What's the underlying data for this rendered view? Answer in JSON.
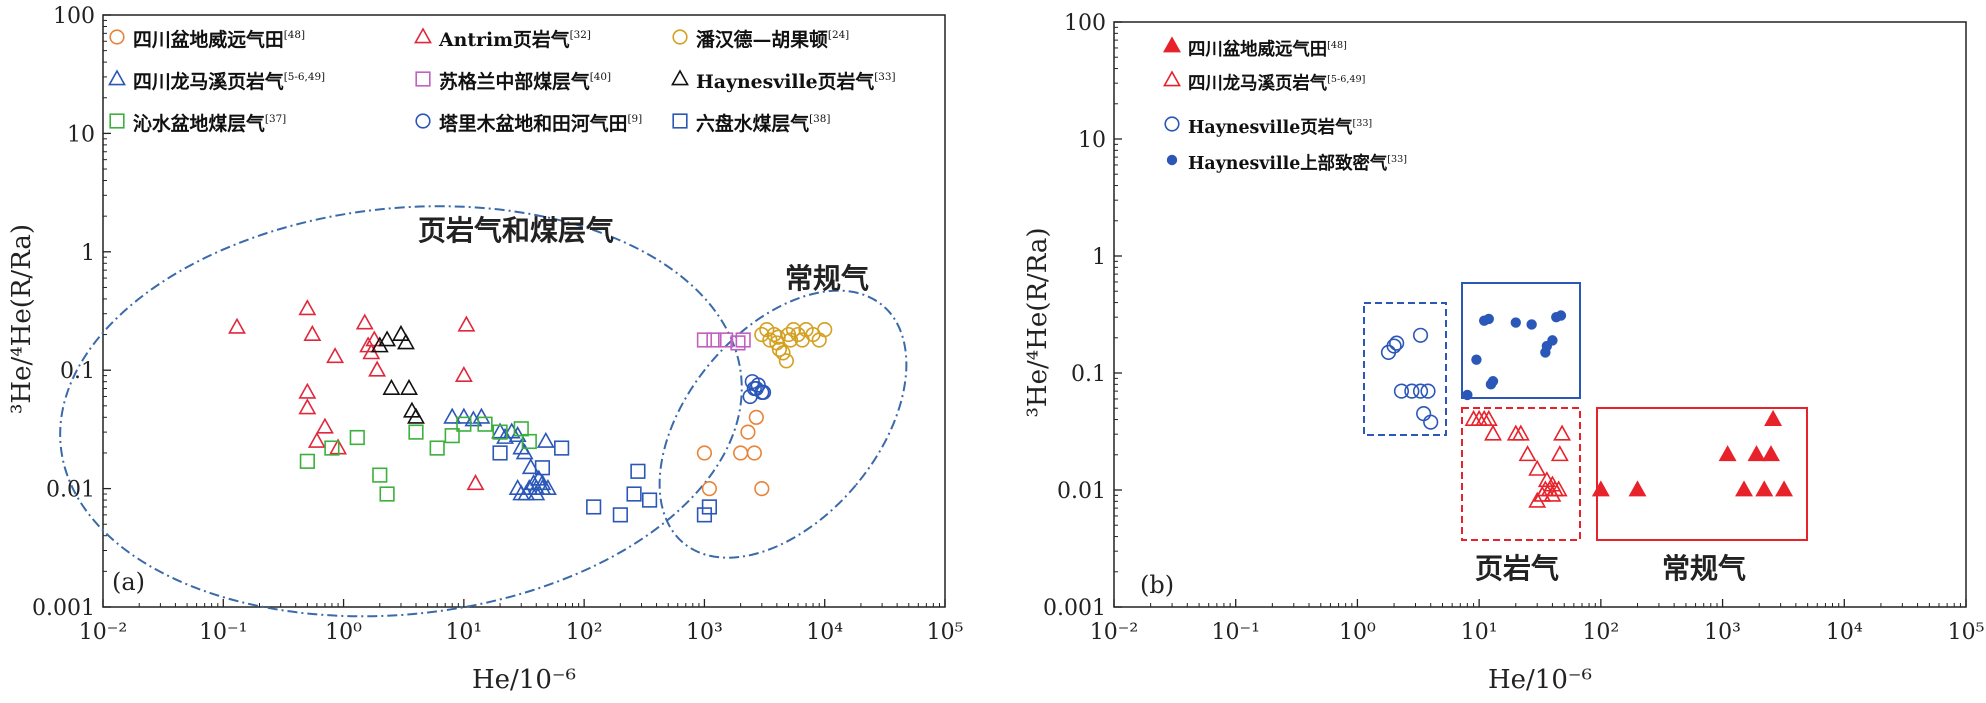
{
  "chart_data": [
    {
      "type": "scatter",
      "panel_label": "(a)",
      "xlabel": "He/10⁻⁶",
      "ylabel": "³He/⁴He(R/Ra)",
      "xscale": "log",
      "yscale": "log",
      "xlim": [
        0.01,
        100000
      ],
      "ylim": [
        0.001,
        100
      ],
      "x_ticks": [
        "10⁻²",
        "10⁻¹",
        "10⁰",
        "10¹",
        "10²",
        "10³",
        "10⁴",
        "10⁵"
      ],
      "y_ticks": [
        "100",
        "10",
        "1",
        "0.1",
        "0.01",
        "0.001"
      ],
      "legend_position": "top",
      "series": [
        {
          "name": "四川盆地威远气田",
          "ref": "[48]",
          "marker": "circle-open",
          "color": "#e8843a",
          "x": [
            1000,
            1100,
            2000,
            2300,
            2600,
            3000,
            2700
          ],
          "y": [
            0.02,
            0.01,
            0.02,
            0.03,
            0.02,
            0.01,
            0.04
          ]
        },
        {
          "name": "Antrim页岩气",
          "ref": "[32]",
          "marker": "triangle-open",
          "color": "#e0283c",
          "x": [
            0.13,
            0.5,
            0.55,
            0.5,
            0.5,
            0.7,
            0.85,
            0.6,
            0.9,
            1.5,
            1.7,
            1.9,
            1.6,
            1.8,
            10.5,
            10,
            12.5
          ],
          "y": [
            0.23,
            0.33,
            0.2,
            0.065,
            0.048,
            0.033,
            0.13,
            0.025,
            0.022,
            0.25,
            0.14,
            0.1,
            0.16,
            0.18,
            0.24,
            0.09,
            0.011
          ]
        },
        {
          "name": "潘汉德—胡果顿",
          "ref": "[24]",
          "marker": "circle-open",
          "color": "#d4a020",
          "x": [
            3000,
            3500,
            4000,
            4500,
            5000,
            5500,
            6000,
            6500,
            7000,
            8000,
            9000,
            10000,
            3800,
            4200,
            4800,
            5200,
            3300,
            4100
          ],
          "y": [
            0.2,
            0.18,
            0.17,
            0.14,
            0.2,
            0.22,
            0.2,
            0.18,
            0.22,
            0.2,
            0.18,
            0.22,
            0.2,
            0.15,
            0.12,
            0.18,
            0.22,
            0.19
          ]
        },
        {
          "name": "四川龙马溪页岩气",
          "ref": "[5-6,49]",
          "marker": "triangle-open",
          "color": "#2b57b8",
          "x": [
            8,
            10,
            12,
            14,
            20,
            25,
            28,
            30,
            35,
            38,
            40,
            42,
            45,
            50,
            32,
            36,
            28,
            33,
            40,
            45,
            48,
            22,
            30
          ],
          "y": [
            0.04,
            0.04,
            0.038,
            0.04,
            0.03,
            0.03,
            0.028,
            0.009,
            0.01,
            0.011,
            0.01,
            0.012,
            0.01,
            0.01,
            0.02,
            0.015,
            0.01,
            0.009,
            0.009,
            0.011,
            0.025,
            0.027,
            0.022
          ]
        },
        {
          "name": "苏格兰中部煤层气",
          "ref": "[40]",
          "marker": "square-open",
          "color": "#c060c0",
          "x": [
            1000,
            1200,
            1500,
            1900,
            2100
          ],
          "y": [
            0.18,
            0.18,
            0.18,
            0.17,
            0.18
          ]
        },
        {
          "name": "Haynesville页岩气",
          "ref": "[33]",
          "marker": "triangle-open",
          "color": "#111111",
          "x": [
            2,
            2.3,
            3,
            3.3,
            2.5,
            3.5,
            3.7,
            4
          ],
          "y": [
            0.16,
            0.18,
            0.2,
            0.17,
            0.07,
            0.07,
            0.045,
            0.04
          ]
        },
        {
          "name": "沁水盆地煤层气",
          "ref": "[37]",
          "marker": "square-open",
          "color": "#3cb03c",
          "x": [
            0.5,
            0.8,
            1.3,
            2,
            2.3,
            4,
            6,
            8,
            10,
            15,
            20,
            30,
            35
          ],
          "y": [
            0.017,
            0.022,
            0.027,
            0.013,
            0.009,
            0.03,
            0.022,
            0.028,
            0.035,
            0.035,
            0.03,
            0.032,
            0.025
          ]
        },
        {
          "name": "塔里木盆地和田河气田",
          "ref": "[9]",
          "marker": "circle-open",
          "color": "#2b57b8",
          "x": [
            2400,
            2700,
            3000,
            2500,
            2800,
            3100,
            2600
          ],
          "y": [
            0.06,
            0.07,
            0.065,
            0.08,
            0.075,
            0.065,
            0.07
          ]
        },
        {
          "name": "六盘水煤层气",
          "ref": "[38]",
          "marker": "square-open",
          "color": "#2b57b8",
          "x": [
            20,
            45,
            65,
            120,
            200,
            280,
            350,
            260,
            1000,
            1100
          ],
          "y": [
            0.02,
            0.015,
            0.022,
            0.007,
            0.006,
            0.014,
            0.008,
            0.009,
            0.006,
            0.007
          ]
        }
      ],
      "annotations": [
        "页岩气和煤层气",
        "常规气"
      ]
    },
    {
      "type": "scatter",
      "panel_label": "(b)",
      "xlabel": "He/10⁻⁶",
      "ylabel": "³He/⁴He(R/Ra)",
      "xscale": "log",
      "yscale": "log",
      "xlim": [
        0.01,
        100000
      ],
      "ylim": [
        0.001,
        100
      ],
      "x_ticks": [
        "10⁻²",
        "10⁻¹",
        "10⁰",
        "10¹",
        "10²",
        "10³",
        "10⁴",
        "10⁵"
      ],
      "y_ticks": [
        "100",
        "10",
        "1",
        "0.1",
        "0.01",
        "0.001"
      ],
      "legend_position": "top-left",
      "series": [
        {
          "name": "四川盆地威远气田",
          "ref": "[48]",
          "marker": "triangle-filled",
          "color": "#e8222a",
          "x": [
            100,
            200,
            1100,
            1500,
            1900,
            2200,
            2500,
            2600,
            3200
          ],
          "y": [
            0.01,
            0.01,
            0.02,
            0.01,
            0.02,
            0.01,
            0.02,
            0.04,
            0.01
          ]
        },
        {
          "name": "四川龙马溪页岩气",
          "ref": "[5-6,49]",
          "marker": "triangle-open",
          "color": "#e8222a",
          "x": [
            9,
            10,
            11,
            12,
            13,
            20,
            22,
            25,
            30,
            33,
            35,
            38,
            40,
            42,
            45,
            48,
            30,
            36,
            40,
            46
          ],
          "y": [
            0.04,
            0.04,
            0.04,
            0.04,
            0.03,
            0.03,
            0.03,
            0.02,
            0.008,
            0.009,
            0.01,
            0.01,
            0.009,
            0.01,
            0.01,
            0.03,
            0.015,
            0.012,
            0.011,
            0.02
          ]
        },
        {
          "name": "Haynesville页岩气",
          "ref": "[33]",
          "marker": "circle-open",
          "color": "#2b57b8",
          "x": [
            1.8,
            2.0,
            2.1,
            3.3,
            2.3,
            2.8,
            3.3,
            3.8,
            3.5,
            4.0
          ],
          "y": [
            0.15,
            0.17,
            0.18,
            0.21,
            0.07,
            0.07,
            0.07,
            0.07,
            0.045,
            0.038
          ]
        },
        {
          "name": "Haynesville上部致密气",
          "ref": "[33]",
          "marker": "circle-filled",
          "color": "#2b57b8",
          "x": [
            8,
            9.5,
            11,
            12,
            12.5,
            13,
            20,
            27,
            36,
            40,
            43,
            47,
            35
          ],
          "y": [
            0.065,
            0.13,
            0.28,
            0.29,
            0.08,
            0.085,
            0.27,
            0.26,
            0.17,
            0.19,
            0.3,
            0.31,
            0.15
          ]
        }
      ],
      "annotations": [
        "页岩气",
        "常规气"
      ]
    }
  ]
}
